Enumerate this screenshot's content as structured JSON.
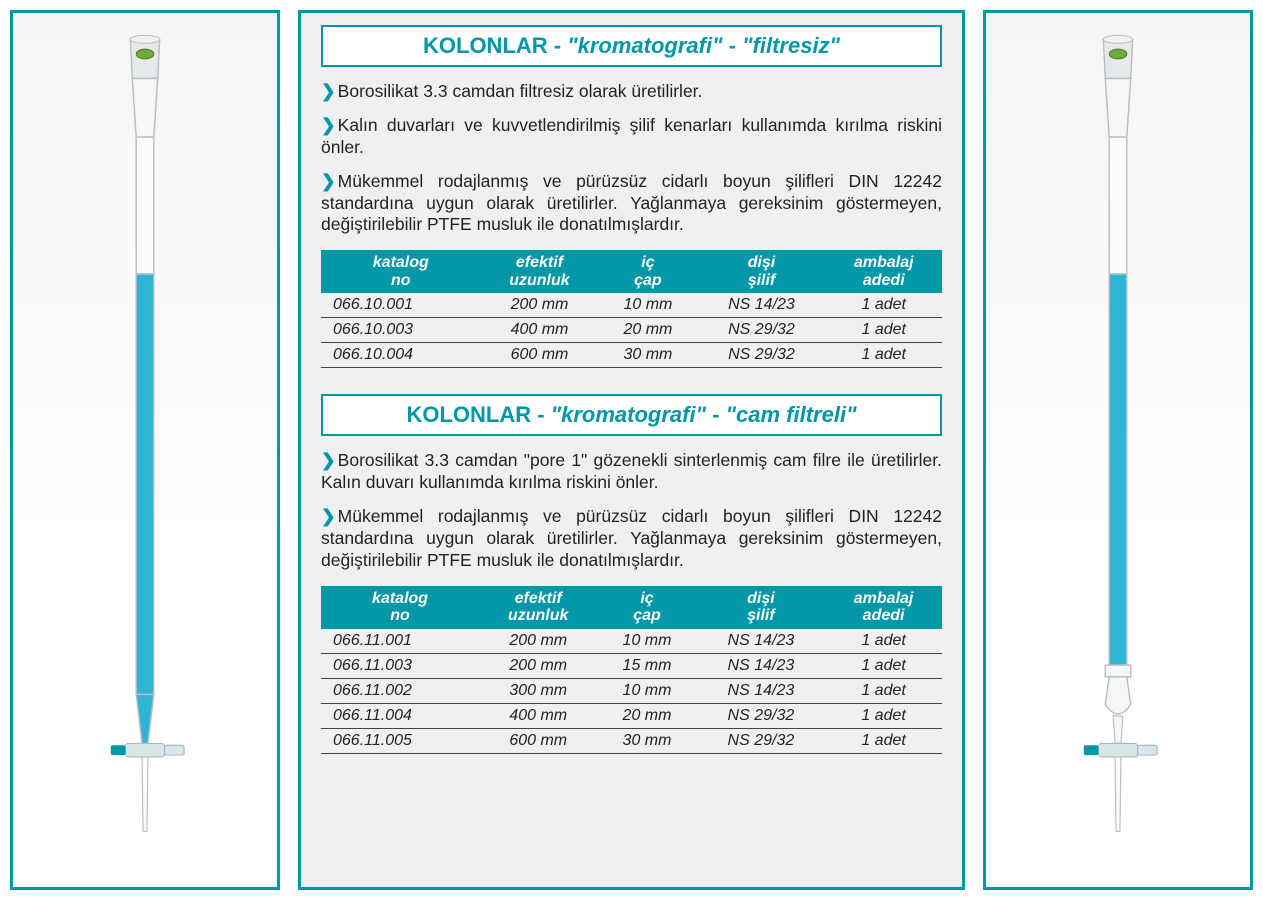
{
  "colors": {
    "teal": "#0097a7",
    "panel_bg": "#eef0f2",
    "text": "#222222",
    "liquid": "#2fb4d6",
    "glass_outline": "#b8c0c4"
  },
  "section1": {
    "title_prefix": "KOLONLAR - ",
    "title_q1": "\"kromatografi\"",
    "title_sep": " - ",
    "title_q2": "\"filtresiz\"",
    "bullets": [
      "Borosilikat 3.3 camdan filtresiz olarak üretilirler.",
      "Kalın duvarları ve kuvvetlendirilmiş şilif kenarları kullanımda kırılma riskini önler.",
      "Mükemmel rodajlanmış ve pürüzsüz cidarlı  boyun şilifleri DIN 12242 standardına uygun olarak üretilirler. Yağlanmaya gereksinim göstermeyen, değiştirilebilir PTFE musluk ile donatılmışlardır."
    ],
    "headers": {
      "c1a": "katalog",
      "c1b": "no",
      "c2a": "efektif",
      "c2b": "uzunluk",
      "c3a": "iç",
      "c3b": "çap",
      "c4a": "dişi",
      "c4b": "şilif",
      "c5a": "ambalaj",
      "c5b": "adedi"
    },
    "rows": [
      {
        "c1": "066.10.001",
        "c2": "200 mm",
        "c3": "10 mm",
        "c4": "NS 14/23",
        "c5": "1 adet"
      },
      {
        "c1": "066.10.003",
        "c2": "400 mm",
        "c3": "20 mm",
        "c4": "NS 29/32",
        "c5": "1 adet"
      },
      {
        "c1": "066.10.004",
        "c2": "600 mm",
        "c3": "30 mm",
        "c4": "NS 29/32",
        "c5": "1 adet"
      }
    ]
  },
  "section2": {
    "title_prefix": "KOLONLAR - ",
    "title_q1": "\"kromatografi\"",
    "title_sep": " - ",
    "title_q2": "\"cam filtreli\"",
    "bullets": [
      "Borosilikat 3.3 camdan \"pore 1\" gözenekli sinterlenmiş cam filre ile üretilirler.  Kalın duvarı kullanımda kırılma riskini önler.",
      "Mükemmel rodajlanmış ve pürüzsüz cidarlı  boyun şilifleri DIN 12242 standardına uygun olarak üretilirler. Yağlanmaya gereksinim göstermeyen, değiştirilebilir PTFE musluk ile donatılmışlardır."
    ],
    "headers": {
      "c1a": "katalog",
      "c1b": "no",
      "c2a": "efektif",
      "c2b": "uzunluk",
      "c3a": "iç",
      "c3b": "çap",
      "c4a": "dişi",
      "c4b": "şilif",
      "c5a": "ambalaj",
      "c5b": "adedi"
    },
    "rows": [
      {
        "c1": "066.11.001",
        "c2": "200 mm",
        "c3": "10 mm",
        "c4": "NS 14/23",
        "c5": "1 adet"
      },
      {
        "c1": "066.11.003",
        "c2": "200 mm",
        "c3": "15 mm",
        "c4": "NS 14/23",
        "c5": "1 adet"
      },
      {
        "c1": "066.11.002",
        "c2": "300 mm",
        "c3": "10 mm",
        "c4": "NS 14/23",
        "c5": "1 adet"
      },
      {
        "c1": "066.11.004",
        "c2": "400 mm",
        "c3": "20 mm",
        "c4": "NS 29/32",
        "c5": "1 adet"
      },
      {
        "c1": "066.11.005",
        "c2": "600 mm",
        "c3": "30 mm",
        "c4": "NS 29/32",
        "c5": "1 adet"
      }
    ]
  },
  "images": {
    "left": {
      "has_frit": false
    },
    "right": {
      "has_frit": true
    }
  }
}
